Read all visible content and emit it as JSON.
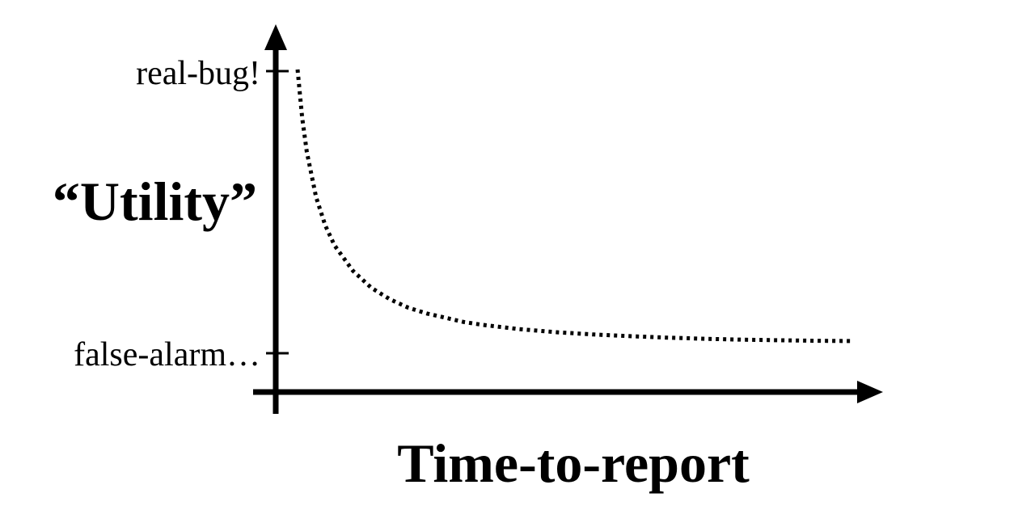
{
  "chart_data": {
    "type": "line",
    "title": "",
    "xlabel": "Time-to-report",
    "ylabel": "“Utility”",
    "y_tick_labels": [
      "real-bug!",
      "false-alarm…"
    ],
    "x_tick_labels": [],
    "grid": false,
    "legend": "none",
    "series": [
      {
        "style": "dotted",
        "color": "#000000",
        "shape": "decay from real-bug! toward false-alarm… as time increases",
        "x": [
          0,
          0.5,
          1,
          2,
          3,
          4,
          6,
          8,
          10,
          12,
          14,
          16,
          18,
          20,
          24,
          28,
          32,
          36,
          40,
          44,
          48,
          52,
          56,
          60
        ],
        "y": [
          1.0,
          0.83,
          0.71,
          0.55,
          0.45,
          0.38,
          0.29,
          0.23,
          0.19,
          0.16,
          0.14,
          0.125,
          0.11,
          0.1,
          0.085,
          0.074,
          0.066,
          0.06,
          0.055,
          0.051,
          0.048,
          0.046,
          0.044,
          0.043
        ]
      }
    ]
  },
  "colors": {
    "axis": "#000000",
    "curve": "#000000",
    "background": "#ffffff"
  }
}
